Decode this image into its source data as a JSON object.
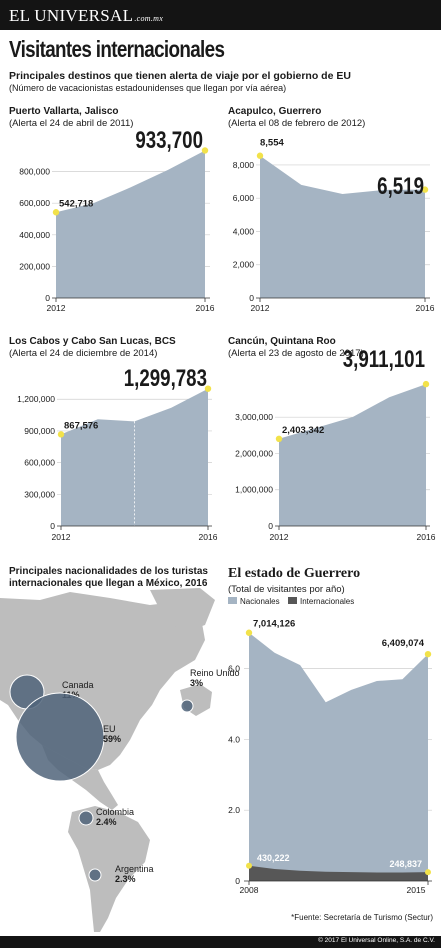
{
  "header": {
    "brand": "EL UNIVERSAL",
    "brand_suffix": ".com.mx"
  },
  "title": "Visitantes internacionales",
  "subtitle": "Principales destinos  que tienen alerta de viaje por el gobierno de EU",
  "subnote": "(Número de vacacionistas estadounidenses que llegan por vía aérea)",
  "source": "*Fuente: Secretaría de Turismo (Sectur)",
  "copyright": "© 2017 El Universal Online, S.A. de C.V.",
  "map": {
    "title_line1": "Principales nacionalidades de los turistas",
    "title_line2": "internacionales que llegan a México, 2016"
  },
  "colors": {
    "area": "#a5b4c3",
    "area_dark": "#575757",
    "dot": "#f2e24a",
    "map_land": "#bdbdbd",
    "bubble": "#50647a"
  },
  "chart_data": [
    {
      "type": "area",
      "title": "Puerto Vallarta, Jalisco",
      "subtitle": "(Alerta el 24 de abril de 2011)",
      "x": [
        2012,
        2013,
        2014,
        2015,
        2016
      ],
      "values": [
        542718,
        600000,
        700000,
        810000,
        933700
      ],
      "x_tick_labels": [
        "2012",
        "2016"
      ],
      "y_ticks": [
        0,
        200000,
        400000,
        600000,
        800000
      ],
      "y_tick_labels": [
        "0",
        "200,000",
        "400,000",
        "600,000",
        "800,000"
      ],
      "ylim": [
        0,
        1000000
      ],
      "annotations": {
        "start": "542,718",
        "end": "933,700"
      }
    },
    {
      "type": "area",
      "title": "Acapulco, Guerrero",
      "subtitle": "(Alerta el 08 de febrero de 2012)",
      "x": [
        2012,
        2013,
        2014,
        2015,
        2016
      ],
      "values": [
        8554,
        6800,
        6250,
        6500,
        6519
      ],
      "x_tick_labels": [
        "2012",
        "2016"
      ],
      "y_ticks": [
        0,
        2000,
        4000,
        6000,
        8000
      ],
      "y_tick_labels": [
        "0",
        "2,000",
        "4,000",
        "6,000",
        "8,000"
      ],
      "ylim": [
        0,
        9500
      ],
      "annotations": {
        "start": "8,554",
        "end": "6,519"
      }
    },
    {
      "type": "area",
      "title": "Los Cabos y Cabo San Lucas, BCS",
      "subtitle": "(Alerta el 24 de diciembre de 2014)",
      "x": [
        2012,
        2013,
        2014,
        2015,
        2016
      ],
      "values": [
        867576,
        1010000,
        990000,
        1120000,
        1299783
      ],
      "x_tick_labels": [
        "2012",
        "2016"
      ],
      "y_ticks": [
        0,
        300000,
        600000,
        900000,
        1200000
      ],
      "y_tick_labels": [
        "0",
        "300,000",
        "600,000",
        "900,000",
        "1,200,000"
      ],
      "ylim": [
        0,
        1420000
      ],
      "dashed_at": 2014,
      "annotations": {
        "start": "867,576",
        "end": "1,299,783"
      }
    },
    {
      "type": "area",
      "title": "Cancún, Quintana Roo",
      "subtitle": "(Alerta el 23 de agosto de 2017)",
      "x": [
        2012,
        2013,
        2014,
        2015,
        2016
      ],
      "values": [
        2403342,
        2700000,
        3000000,
        3550000,
        3911101
      ],
      "x_tick_labels": [
        "2012",
        "2016"
      ],
      "y_ticks": [
        0,
        1000000,
        2000000,
        3000000
      ],
      "y_tick_labels": [
        "0",
        "1,000,000",
        "2,000,000",
        "3,000,000"
      ],
      "ylim": [
        0,
        4300000
      ],
      "annotations": {
        "start": "2,403,342",
        "end": "3,911,101"
      }
    },
    {
      "type": "area",
      "title": "El estado de Guerrero",
      "subtitle": "(Total de visitantes por año)",
      "legend": [
        "Nacionales",
        "Internacionales"
      ],
      "x": [
        2008,
        2009,
        2010,
        2011,
        2012,
        2013,
        2014,
        2015
      ],
      "x_tick_labels": [
        "2008",
        "2015"
      ],
      "series": [
        {
          "name": "Nacionales",
          "values": [
            7.014,
            6.45,
            6.1,
            5.05,
            5.4,
            5.65,
            5.7,
            6.409
          ]
        },
        {
          "name": "Internacionales",
          "values": [
            0.43,
            0.34,
            0.29,
            0.26,
            0.25,
            0.24,
            0.24,
            0.249
          ]
        }
      ],
      "y_ticks": [
        0,
        2.0,
        4.0,
        6.0
      ],
      "y_tick_labels": [
        "0",
        "2.0",
        "4.0",
        "6.0"
      ],
      "ylim": [
        0,
        7.6
      ],
      "annotations": {
        "start_top": "7,014,126",
        "end_top": "6,409,074",
        "start_bottom": "430,222",
        "end_bottom": "248,837"
      }
    },
    {
      "type": "bubble",
      "title": "Principales nacionalidades de los turistas internacionales que llegan a México, 2016",
      "categories": [
        "Canada",
        "EU",
        "Reino Unido",
        "Colombia",
        "Argentina"
      ],
      "values": [
        11,
        59,
        3,
        2.4,
        2.3
      ],
      "value_labels": [
        "11%",
        "59%",
        "3%",
        "2.4%",
        "2.3%"
      ]
    }
  ]
}
